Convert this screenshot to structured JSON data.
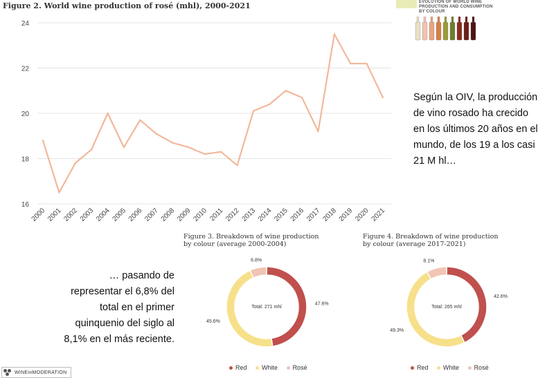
{
  "line_chart_title": "Figure 2. World wine production of rosé (mhl), 2000-2021",
  "cover": {
    "lines": [
      "EVOLUTION OF WORLD WINE",
      "PRODUCTION AND CONSUMPTION",
      "BY COLOUR"
    ],
    "bottle_colors": [
      "#e9dfc6",
      "#f3c1b4",
      "#e7a47e",
      "#d77f48",
      "#9a9b3a",
      "#6e7d2e",
      "#8a2c20",
      "#6b1e18",
      "#4e1512"
    ]
  },
  "notes": {
    "right": "Según la OIV, la producción de vino rosado ha crecido en los últimos 20 años en el mundo, de los 19 a los casi 21 M hl…",
    "left": "… pasando de representar el 6,8% del total en el primer quinquenio del siglo al 8,1% en el más reciente."
  },
  "legend": {
    "red": "Red",
    "white": "White",
    "rose": "Rosé"
  },
  "colors": {
    "line": "#f2b89a",
    "red": "#c0504d",
    "white": "#f7e08a",
    "rose": "#f2c4b3"
  },
  "logo_text": "WINEinMODERATION",
  "chart_data": [
    {
      "type": "line",
      "title": "Figure 2. World wine production of rosé (mhl), 2000-2021",
      "xlabel": "",
      "ylabel": "",
      "x": [
        "2000",
        "2001",
        "2002",
        "2003",
        "2004",
        "2005",
        "2006",
        "2007",
        "2008",
        "2009",
        "2010",
        "2011",
        "2012",
        "2013",
        "2014",
        "2015",
        "2016",
        "2017",
        "2018",
        "2019",
        "2020",
        "2021"
      ],
      "series": [
        {
          "name": "Rosé",
          "values": [
            18.8,
            16.5,
            17.8,
            18.4,
            20.0,
            18.5,
            19.7,
            19.1,
            18.7,
            18.5,
            18.2,
            18.3,
            17.7,
            20.1,
            20.4,
            21.0,
            20.7,
            19.2,
            23.5,
            22.2,
            22.2,
            20.7
          ]
        }
      ],
      "ylim": [
        16,
        24
      ],
      "yticks": [
        16,
        18,
        20,
        22,
        24
      ],
      "grid": true
    },
    {
      "type": "pie",
      "title": "Figure 3. Breakdown of wine production by colour (average 2000-2004)",
      "title_lines": [
        "Figure 3. Breakdown of wine production",
        "by colour (average 2000-2004)"
      ],
      "center_label": "Total: 271 mhl",
      "slices": [
        {
          "name": "Red",
          "value": 47.6,
          "label": "47.6%"
        },
        {
          "name": "White",
          "value": 45.6,
          "label": "45.6%"
        },
        {
          "name": "Rosé",
          "value": 6.8,
          "label": "6.8%"
        }
      ]
    },
    {
      "type": "pie",
      "title": "Figure 4. Breakdown of wine production by colour (average 2017-2021)",
      "title_lines": [
        "Figure 4. Breakdown of wine production",
        "by colour (average 2017-2021)"
      ],
      "center_label": "Total: 265 mhl",
      "slices": [
        {
          "name": "Red",
          "value": 42.6,
          "label": "42.6%"
        },
        {
          "name": "White",
          "value": 49.3,
          "label": "49.3%"
        },
        {
          "name": "Rosé",
          "value": 8.1,
          "label": "8.1%"
        }
      ]
    }
  ]
}
